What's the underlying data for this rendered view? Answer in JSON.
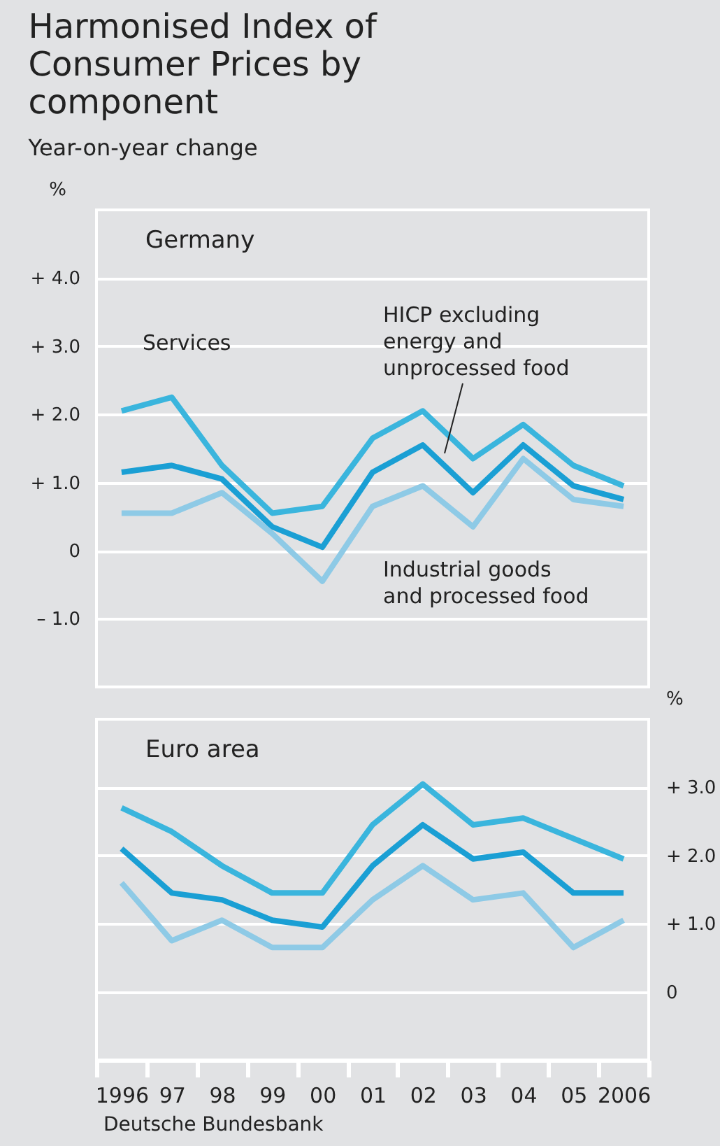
{
  "chart_data": [
    {
      "type": "line",
      "title": "Harmonised Index of Consumer Prices by component",
      "subtitle": "Year-on-year change",
      "ylabel": "%",
      "annotations": [
        "Germany"
      ],
      "categories": [
        "1996",
        "97",
        "98",
        "99",
        "00",
        "01",
        "02",
        "03",
        "04",
        "05",
        "2006"
      ],
      "series": [
        {
          "name": "Services",
          "color": "#3ab5dd",
          "values": [
            2.05,
            2.25,
            1.25,
            0.55,
            0.65,
            1.65,
            2.05,
            1.35,
            1.85,
            1.25,
            0.95
          ]
        },
        {
          "name": "HICP excluding energy and unprocessed food",
          "color": "#1a9fd4",
          "values": [
            1.15,
            1.25,
            1.05,
            0.35,
            0.05,
            1.15,
            1.55,
            0.85,
            1.55,
            0.95,
            0.75
          ]
        },
        {
          "name": "Industrial goods and processed food",
          "color": "#8ecae6",
          "values": [
            0.55,
            0.55,
            0.85,
            0.25,
            -0.45,
            0.65,
            0.95,
            0.35,
            1.35,
            0.75,
            0.65
          ]
        }
      ],
      "ylim": [
        -2,
        5
      ],
      "yticks": [
        {
          "value": 4,
          "label": "+ 4.0"
        },
        {
          "value": 3,
          "label": "+ 3.0"
        },
        {
          "value": 2,
          "label": "+ 2.0"
        },
        {
          "value": 1,
          "label": "+ 1.0"
        },
        0,
        {
          "value": -1,
          "label": "– 1.0"
        }
      ],
      "grid": "y",
      "legend": false,
      "tick_labels": "y"
    },
    {
      "type": "line",
      "ylabel": "%",
      "annotations": [
        "Euro area",
        "Deutsche Bundesbank"
      ],
      "categories": [
        "1996",
        "97",
        "98",
        "99",
        "00",
        "01",
        "02",
        "03",
        "04",
        "05",
        "2006"
      ],
      "series": [
        {
          "color": "#3ab5dd",
          "values": [
            2.7,
            2.35,
            1.85,
            1.45,
            1.45,
            2.45,
            3.05,
            2.45,
            2.55,
            2.25,
            1.95
          ]
        },
        {
          "color": "#1a9fd4",
          "values": [
            2.1,
            1.45,
            1.35,
            1.05,
            0.95,
            1.85,
            2.45,
            1.95,
            2.05,
            1.45,
            1.45
          ]
        },
        {
          "color": "#8ecae6",
          "values": [
            1.6,
            0.75,
            1.05,
            0.65,
            0.65,
            1.35,
            1.85,
            1.35,
            1.45,
            0.65,
            1.05
          ]
        }
      ],
      "ylim": [
        -1,
        4
      ],
      "yticks": [
        {
          "value": 3,
          "label": "+ 3.0"
        },
        {
          "value": 2,
          "label": "+ 2.0"
        },
        {
          "value": 1,
          "label": "+ 1.0"
        },
        0
      ],
      "grid": "y",
      "legend": false
    }
  ]
}
